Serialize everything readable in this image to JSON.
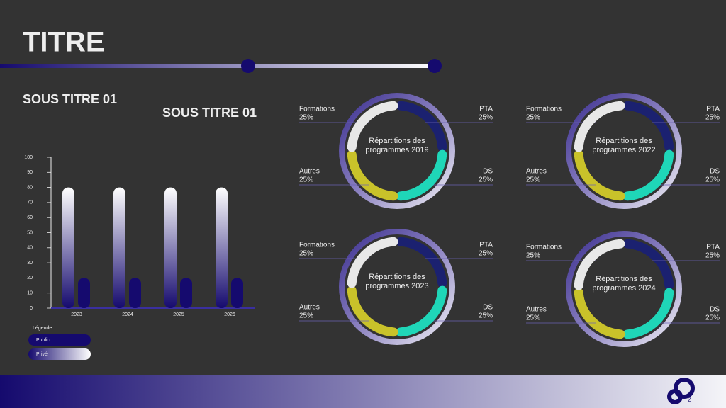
{
  "title": "TITRE",
  "subtitles": [
    "SOUS TITRE 01",
    "SOUS TITRE 01"
  ],
  "page_number": "2",
  "chart_data": [
    {
      "type": "bar",
      "categories": [
        "2023",
        "2024",
        "2025",
        "2026"
      ],
      "series": [
        {
          "name": "Public",
          "color": "#150a6e",
          "values": [
            20,
            20,
            20,
            20
          ]
        },
        {
          "name": "Privé",
          "color": "#ffffff",
          "values": [
            80,
            80,
            80,
            80
          ]
        }
      ],
      "ylim": [
        0,
        100
      ],
      "yticks": [
        0,
        10,
        20,
        30,
        40,
        50,
        60,
        70,
        80,
        90,
        100
      ],
      "legend_title": "Légende"
    },
    {
      "type": "pie",
      "title": "Répartitions des programmes 2019",
      "categories": [
        "DS",
        "PTA",
        "Formations",
        "Autres"
      ],
      "values": [
        25,
        25,
        25,
        25
      ],
      "value_labels": [
        "25%",
        "25%",
        "25%",
        "25%"
      ],
      "colors": [
        "#1b2170",
        "#1fd6b8",
        "#c9c22a",
        "#e8e8e8"
      ]
    },
    {
      "type": "pie",
      "title": "Répartitions des programmes 2022",
      "categories": [
        "DS",
        "PTA",
        "Formations",
        "Autres"
      ],
      "values": [
        25,
        25,
        25,
        25
      ],
      "value_labels": [
        "25%",
        "25%",
        "25%",
        "25%"
      ],
      "colors": [
        "#1b2170",
        "#1fd6b8",
        "#c9c22a",
        "#e8e8e8"
      ]
    },
    {
      "type": "pie",
      "title": "Répartitions des programmes 2023",
      "categories": [
        "DS",
        "PTA",
        "Formations",
        "Autres"
      ],
      "values": [
        25,
        25,
        25,
        25
      ],
      "value_labels": [
        "25%",
        "25%",
        "25%",
        "25%"
      ],
      "colors": [
        "#1b2170",
        "#1fd6b8",
        "#c9c22a",
        "#e8e8e8"
      ]
    },
    {
      "type": "pie",
      "title": "Répartitions des programmes 2024",
      "categories": [
        "DS",
        "PTA",
        "Formations",
        "Autres"
      ],
      "values": [
        25,
        25,
        25,
        25
      ],
      "value_labels": [
        "25%",
        "25%",
        "25%",
        "25%"
      ],
      "colors": [
        "#1b2170",
        "#1fd6b8",
        "#c9c22a",
        "#e8e8e8"
      ]
    }
  ]
}
